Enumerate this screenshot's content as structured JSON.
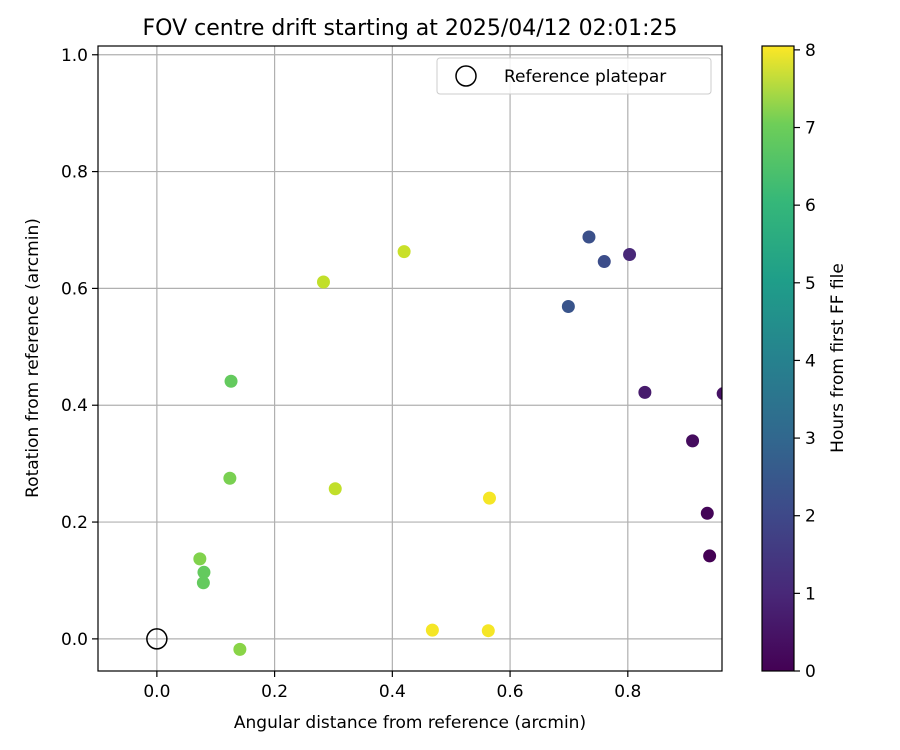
{
  "chart_data": {
    "type": "scatter",
    "title": "FOV centre drift starting at 2025/04/12 02:01:25",
    "xlabel": "Angular distance from reference (arcmin)",
    "ylabel": "Rotation from reference (arcmin)",
    "xlim": [
      -0.1,
      0.96
    ],
    "ylim": [
      -0.055,
      1.015
    ],
    "xticks": [
      0.0,
      0.2,
      0.4,
      0.6,
      0.8
    ],
    "xtick_labels": [
      "0.0",
      "0.2",
      "0.4",
      "0.6",
      "0.8"
    ],
    "yticks": [
      0.0,
      0.2,
      0.4,
      0.6,
      0.8,
      1.0
    ],
    "ytick_labels": [
      "0.0",
      "0.2",
      "0.4",
      "0.6",
      "0.8",
      "1.0"
    ],
    "grid": true,
    "legend": {
      "placement": "top-right",
      "entries": [
        {
          "label": "Reference platepar",
          "marker": "open-circle",
          "color": "#000000"
        }
      ]
    },
    "reference_point": {
      "x": 0.0,
      "y": 0.0
    },
    "colorbar": {
      "label": "Hours from first FF file",
      "colormap": "viridis",
      "range": [
        0,
        8.05
      ],
      "ticks": [
        0,
        1,
        2,
        3,
        4,
        5,
        6,
        7,
        8
      ],
      "tick_labels": [
        "0",
        "1",
        "2",
        "3",
        "4",
        "5",
        "6",
        "7",
        "8"
      ]
    },
    "series": [
      {
        "points": [
          {
            "x": 0.939,
            "y": 0.142,
            "hours": 0.0
          },
          {
            "x": 0.935,
            "y": 0.215,
            "hours": 0.1
          },
          {
            "x": 0.91,
            "y": 0.339,
            "hours": 0.25
          },
          {
            "x": 0.962,
            "y": 0.42,
            "hours": 0.4
          },
          {
            "x": 0.829,
            "y": 0.422,
            "hours": 0.6
          },
          {
            "x": 0.803,
            "y": 0.658,
            "hours": 0.9
          },
          {
            "x": 0.76,
            "y": 0.646,
            "hours": 1.9
          },
          {
            "x": 0.734,
            "y": 0.688,
            "hours": 2.0
          },
          {
            "x": 0.699,
            "y": 0.569,
            "hours": 2.1
          },
          {
            "x": 0.126,
            "y": 0.441,
            "hours": 6.1
          },
          {
            "x": 0.079,
            "y": 0.096,
            "hours": 6.1
          },
          {
            "x": 0.08,
            "y": 0.114,
            "hours": 6.1
          },
          {
            "x": 0.124,
            "y": 0.275,
            "hours": 6.4
          },
          {
            "x": 0.073,
            "y": 0.137,
            "hours": 6.5
          },
          {
            "x": 0.141,
            "y": -0.018,
            "hours": 6.6
          },
          {
            "x": 0.283,
            "y": 0.611,
            "hours": 7.3
          },
          {
            "x": 0.303,
            "y": 0.257,
            "hours": 7.3
          },
          {
            "x": 0.42,
            "y": 0.663,
            "hours": 7.4
          },
          {
            "x": 0.565,
            "y": 0.241,
            "hours": 7.95
          },
          {
            "x": 0.468,
            "y": 0.015,
            "hours": 7.95
          },
          {
            "x": 0.563,
            "y": 0.014,
            "hours": 7.95
          }
        ]
      }
    ]
  }
}
